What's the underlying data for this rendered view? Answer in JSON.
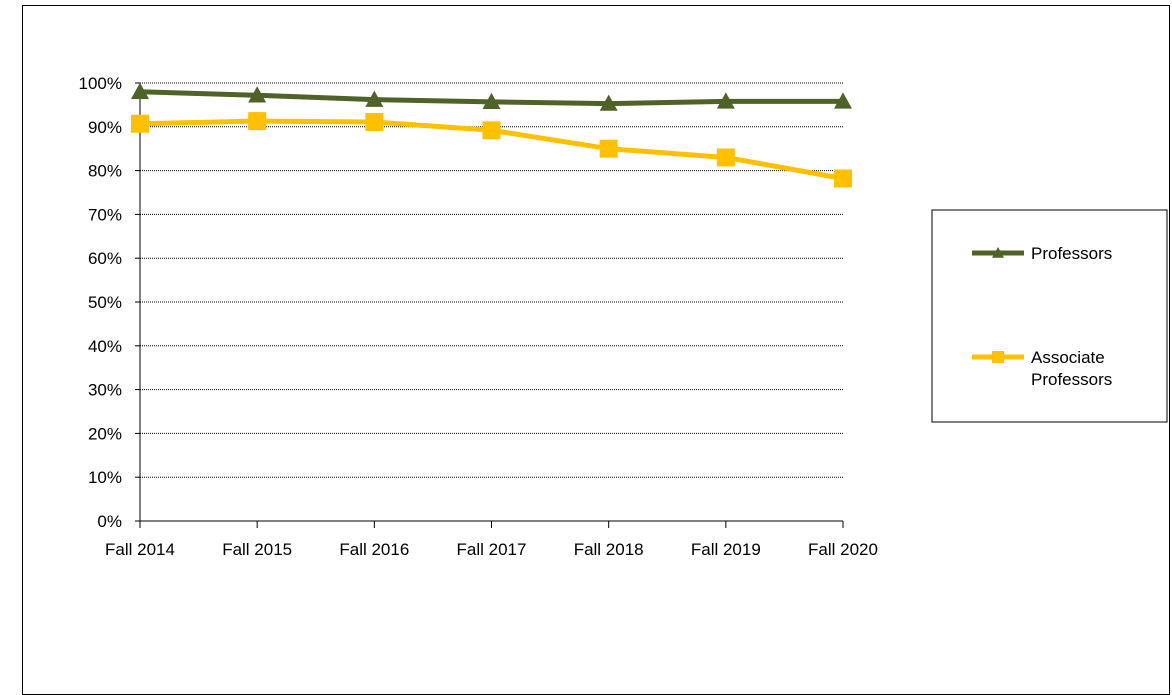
{
  "chart_data": {
    "type": "line",
    "title": "",
    "xlabel": "",
    "ylabel": "",
    "categories": [
      "Fall 2014",
      "Fall 2015",
      "Fall 2016",
      "Fall 2017",
      "Fall 2018",
      "Fall 2019",
      "Fall 2020"
    ],
    "ylim": [
      0,
      100
    ],
    "y_ticks": [
      "0%",
      "10%",
      "20%",
      "30%",
      "40%",
      "50%",
      "60%",
      "70%",
      "80%",
      "90%",
      "100%"
    ],
    "grid": "horizontal-dotted",
    "legend_position": "right",
    "series": [
      {
        "name": "Professors",
        "values": [
          98,
          97.2,
          96.2,
          95.7,
          95.3,
          95.8,
          95.8
        ],
        "color": "#4f6228",
        "marker": "triangle"
      },
      {
        "name": "Associate Professors",
        "legend_lines": [
          "Associate",
          "Professors"
        ],
        "values": [
          90.7,
          91.3,
          91.1,
          89.2,
          85,
          83,
          78.2
        ],
        "color": "#ffc000",
        "marker": "square"
      }
    ]
  }
}
